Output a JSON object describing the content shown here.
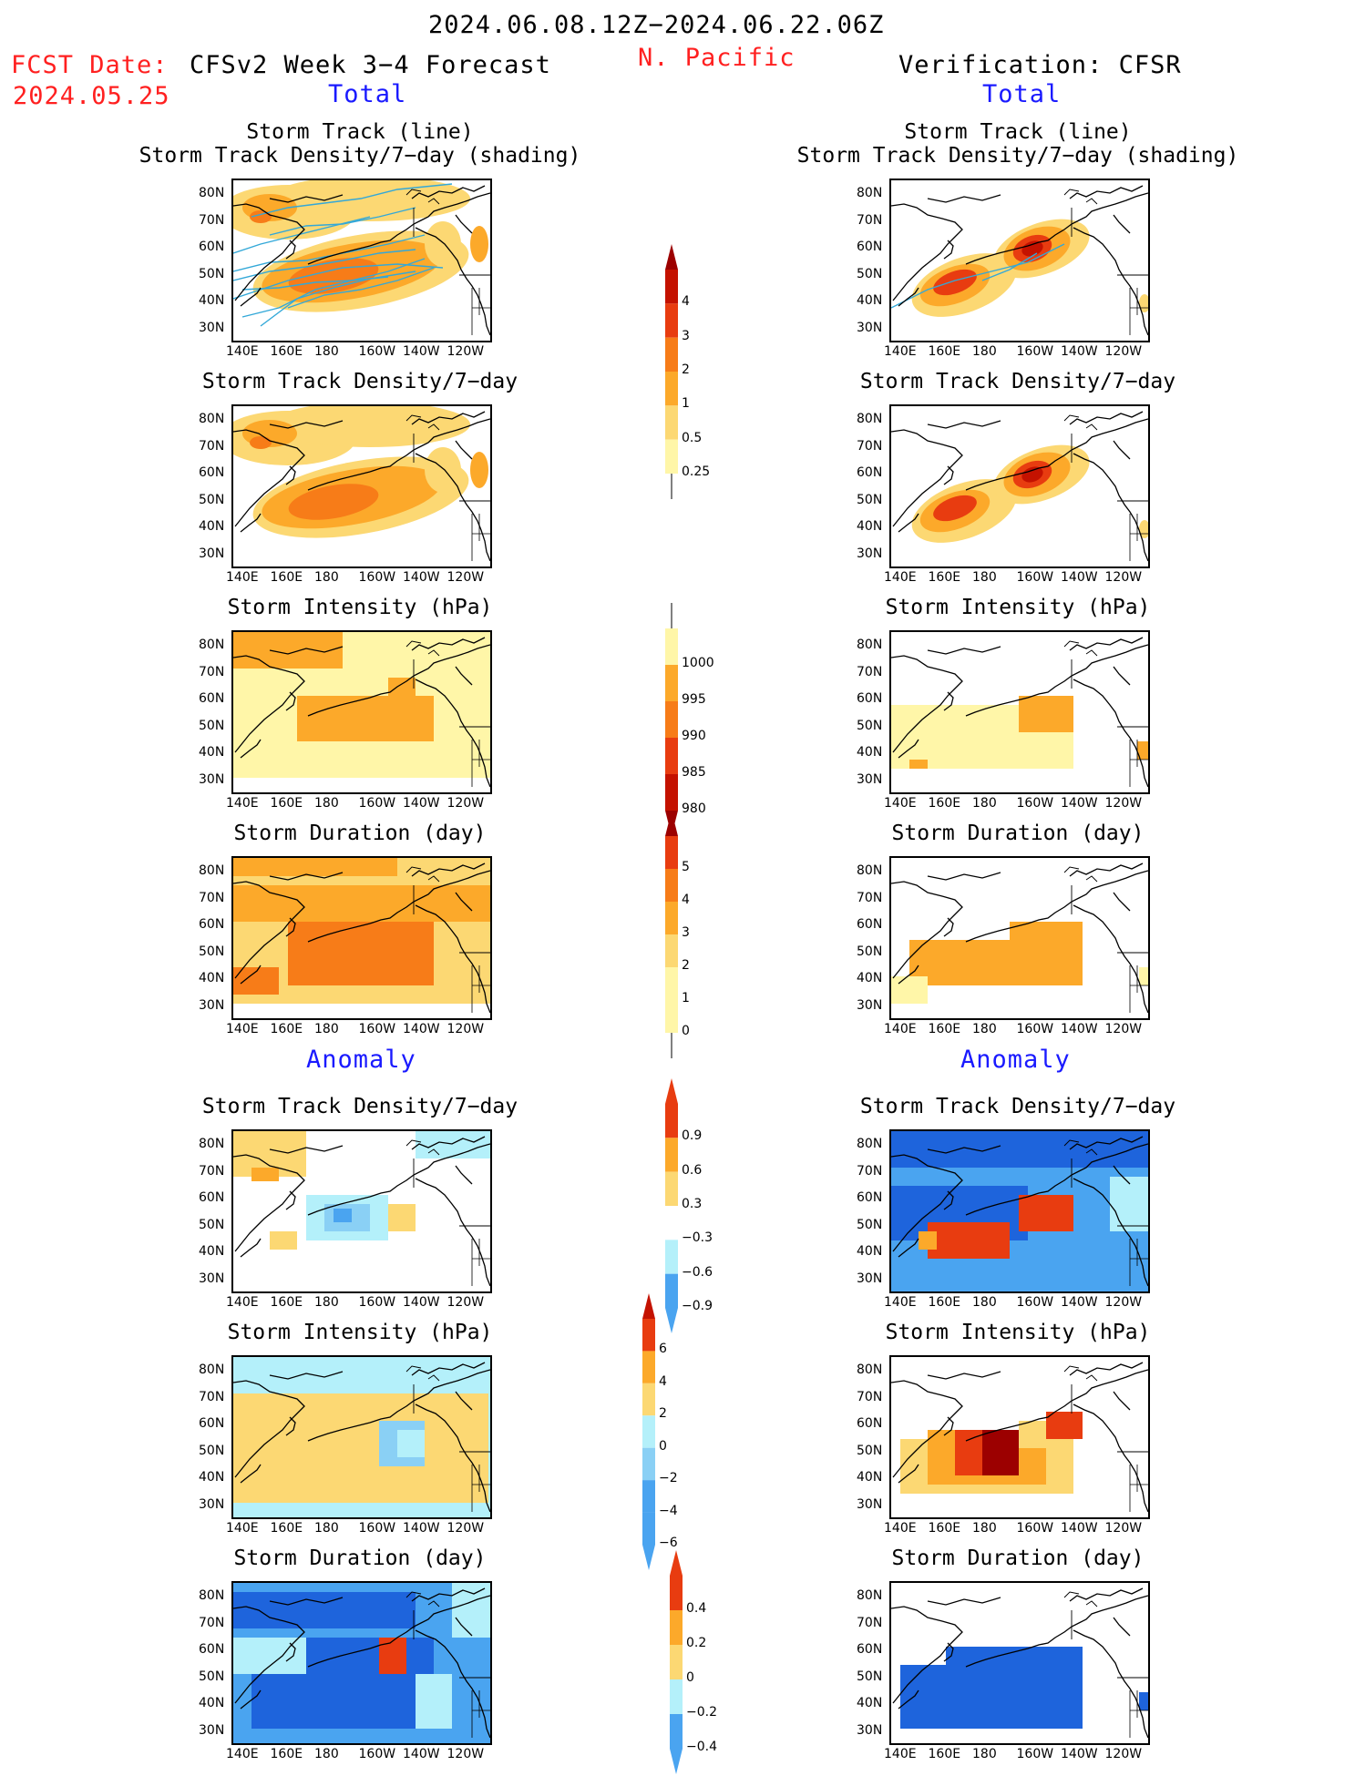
{
  "header": {
    "date_range": "2024.06.08.12Z−2024.06.22.06Z",
    "region": "N. Pacific",
    "fcst_label": "FCST Date:",
    "fcst_date": "2024.05.25",
    "model_title": "CFSv2 Week 3−4 Forecast",
    "verification_title": "Verification: CFSR",
    "left_total": "Total",
    "right_total": "Total",
    "left_anomaly": "Anomaly",
    "right_anomaly": "Anomaly"
  },
  "axes": {
    "x_ticks": [
      "140E",
      "160E",
      "180",
      "160W",
      "140W",
      "120W"
    ],
    "y_ticks": [
      "80N",
      "70N",
      "60N",
      "50N",
      "40N",
      "30N"
    ]
  },
  "panel_titles": {
    "track_line": "Storm Track (line)",
    "track_shading": "Storm Track Density/7−day (shading)",
    "density": "Storm Track Density/7−day",
    "intensity": "Storm Intensity (hPa)",
    "duration": "Storm Duration (day)"
  },
  "colorbars": {
    "density_total": [
      "4",
      "3",
      "2",
      "1",
      "0.5",
      "0.25"
    ],
    "intensity_total": [
      "1000",
      "995",
      "990",
      "985",
      "980"
    ],
    "duration_total": [
      "5",
      "4",
      "3",
      "2",
      "1",
      "0"
    ],
    "density_anom": [
      "0.9",
      "0.6",
      "0.3",
      "−0.3",
      "−0.6",
      "−0.9"
    ],
    "intensity_anom": [
      "6",
      "4",
      "2",
      "0",
      "−2",
      "−4",
      "−6"
    ],
    "duration_anom": [
      "0.4",
      "0.2",
      "0",
      "−0.2",
      "−0.4"
    ]
  },
  "colors": {
    "orange_light": "#fff6a8",
    "orange1": "#fcd873",
    "orange2": "#fca92a",
    "orange3": "#f77c18",
    "red1": "#e83c10",
    "red2": "#c41200",
    "red3": "#9c0000",
    "blue_light": "#b4f0fa",
    "blue1": "#8ad0f5",
    "blue2": "#4aa4f0",
    "blue3": "#1e64dc",
    "track_line": "#33a8d8"
  },
  "chart_data": [
    {
      "type": "heatmap",
      "title": "Storm Track (line) / Storm Track Density/7−day (shading)",
      "source": "CFSv2 Week 3−4 Forecast",
      "section": "Total"
    },
    {
      "type": "heatmap",
      "title": "Storm Track (line) / Storm Track Density/7−day (shading)",
      "source": "Verification: CFSR",
      "section": "Total"
    },
    {
      "type": "heatmap",
      "title": "Storm Track Density/7−day",
      "source": "CFSv2 Week 3−4 Forecast",
      "section": "Total"
    },
    {
      "type": "heatmap",
      "title": "Storm Track Density/7−day",
      "source": "Verification: CFSR",
      "section": "Total"
    },
    {
      "type": "heatmap",
      "title": "Storm Intensity (hPa)",
      "source": "CFSv2 Week 3−4 Forecast",
      "section": "Total"
    },
    {
      "type": "heatmap",
      "title": "Storm Intensity (hPa)",
      "source": "Verification: CFSR",
      "section": "Total"
    },
    {
      "type": "heatmap",
      "title": "Storm Duration (day)",
      "source": "CFSv2 Week 3−4 Forecast",
      "section": "Total"
    },
    {
      "type": "heatmap",
      "title": "Storm Duration (day)",
      "source": "Verification: CFSR",
      "section": "Total"
    },
    {
      "type": "heatmap",
      "title": "Storm Track Density/7−day",
      "source": "CFSv2 Week 3−4 Forecast",
      "section": "Anomaly"
    },
    {
      "type": "heatmap",
      "title": "Storm Track Density/7−day",
      "source": "Verification: CFSR",
      "section": "Anomaly"
    },
    {
      "type": "heatmap",
      "title": "Storm Intensity (hPa)",
      "source": "CFSv2 Week 3−4 Forecast",
      "section": "Anomaly"
    },
    {
      "type": "heatmap",
      "title": "Storm Intensity (hPa)",
      "source": "Verification: CFSR",
      "section": "Anomaly"
    },
    {
      "type": "heatmap",
      "title": "Storm Duration (day)",
      "source": "CFSv2 Week 3−4 Forecast",
      "section": "Anomaly"
    },
    {
      "type": "heatmap",
      "title": "Storm Duration (day)",
      "source": "Verification: CFSR",
      "section": "Anomaly"
    }
  ]
}
